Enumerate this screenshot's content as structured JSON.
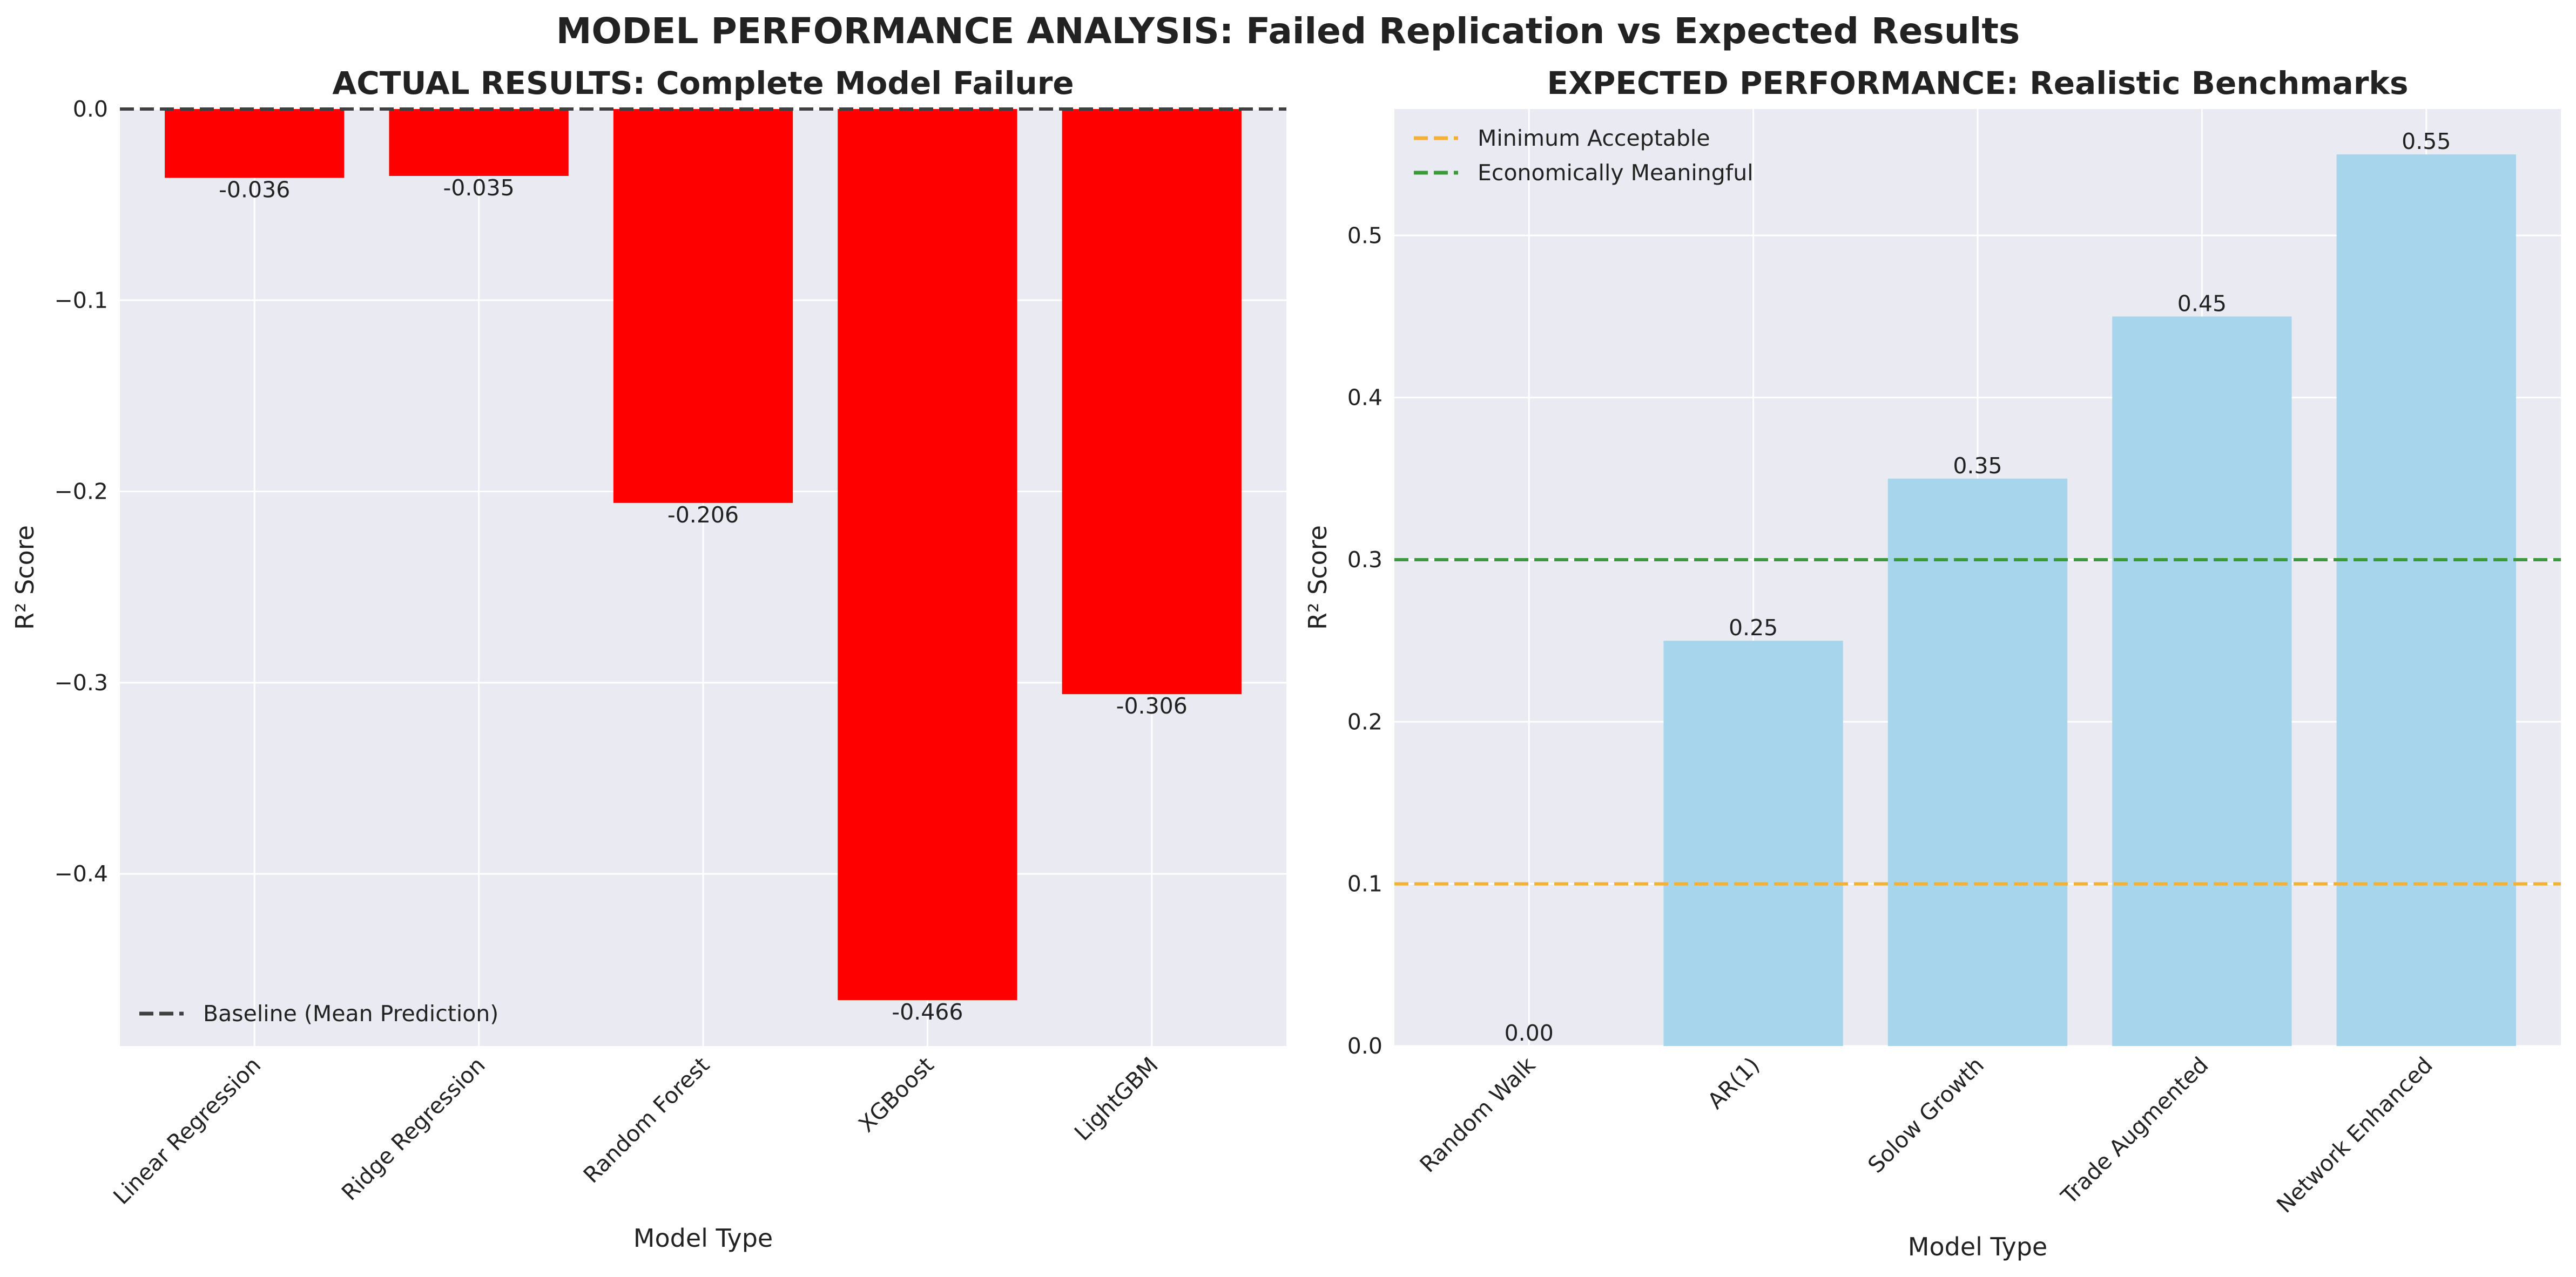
{
  "figure": {
    "title": "MODEL PERFORMANCE ANALYSIS: Failed Replication vs Expected Results"
  },
  "chart_data": [
    {
      "type": "bar",
      "title": "ACTUAL RESULTS: Complete Model Failure",
      "xlabel": "Model Type",
      "ylabel": "R² Score",
      "categories": [
        "Linear Regression",
        "Ridge Regression",
        "Random Forest",
        "XGBoost",
        "LightGBM"
      ],
      "values": [
        -0.036,
        -0.035,
        -0.206,
        -0.466,
        -0.306
      ],
      "value_labels": [
        "-0.036",
        "-0.035",
        "-0.206",
        "-0.466",
        "-0.306"
      ],
      "bar_color": "#ff0000",
      "ylim": [
        -0.49,
        0.0
      ],
      "yticks": [
        0.0,
        -0.1,
        -0.2,
        -0.3,
        -0.4
      ],
      "ytick_labels": [
        "0.0",
        "−0.1",
        "−0.2",
        "−0.3",
        "−0.4"
      ],
      "grid": true,
      "legend_position": "lower-left",
      "reference_lines": [
        {
          "y": 0.0,
          "label": "Baseline (Mean Prediction)",
          "color": "#404040",
          "style": "dashed"
        }
      ]
    },
    {
      "type": "bar",
      "title": "EXPECTED PERFORMANCE: Realistic Benchmarks",
      "xlabel": "Model Type",
      "ylabel": "R² Score",
      "categories": [
        "Random Walk",
        "AR(1)",
        "Solow Growth",
        "Trade Augmented",
        "Network Enhanced"
      ],
      "values": [
        0.0,
        0.25,
        0.35,
        0.45,
        0.55
      ],
      "value_labels": [
        "0.00",
        "0.25",
        "0.35",
        "0.45",
        "0.55"
      ],
      "bar_color": "#a6d5ec",
      "ylim": [
        0.0,
        0.578
      ],
      "yticks": [
        0.0,
        0.1,
        0.2,
        0.3,
        0.4,
        0.5
      ],
      "ytick_labels": [
        "0.0",
        "0.1",
        "0.2",
        "0.3",
        "0.4",
        "0.5"
      ],
      "grid": true,
      "legend_position": "upper-left",
      "reference_lines": [
        {
          "y": 0.1,
          "label": "Minimum Acceptable",
          "color": "#f5b134",
          "style": "dashed"
        },
        {
          "y": 0.3,
          "label": "Economically Meaningful",
          "color": "#3a9a3a",
          "style": "dashed"
        }
      ]
    }
  ]
}
